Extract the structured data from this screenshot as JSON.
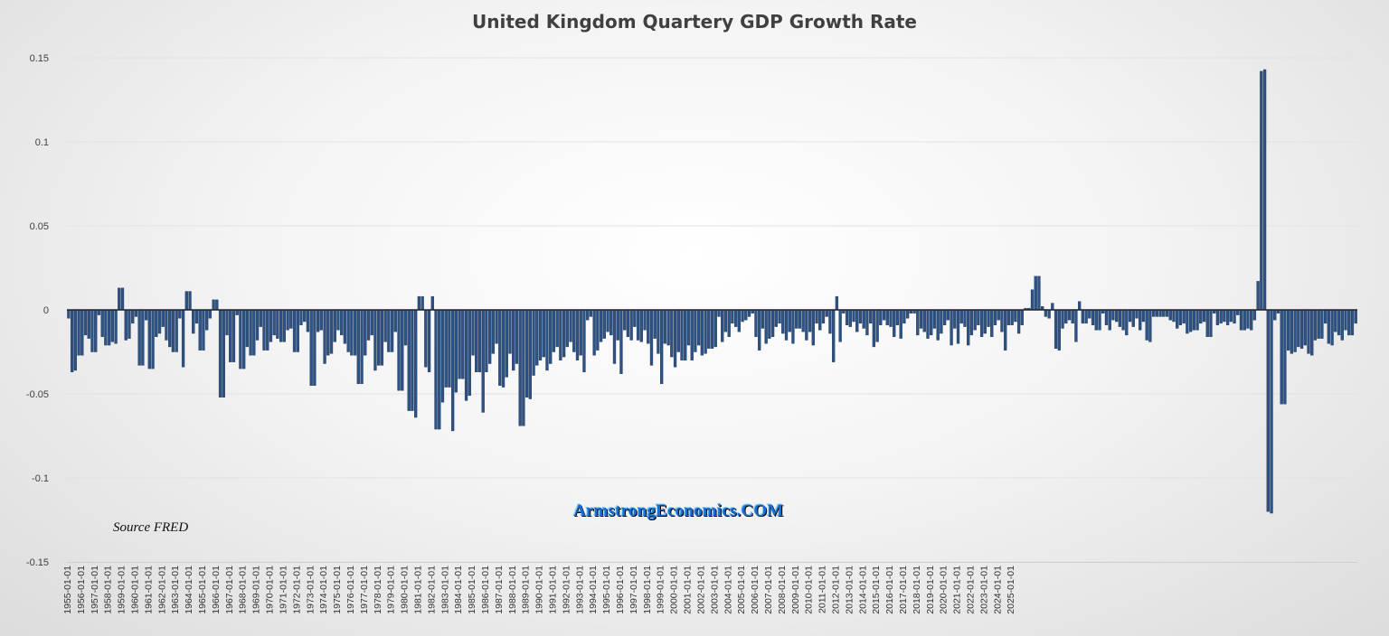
{
  "chart_data": {
    "type": "bar",
    "title": "United Kingdom Quartery GDP Growth Rate",
    "xlabel": "",
    "ylabel": "",
    "ylim": [
      -0.15,
      0.15
    ],
    "yticks": [
      "0.15",
      "0.1",
      "0.05",
      "0",
      "-0.05",
      "-0.1",
      "-0.15"
    ],
    "ytick_values": [
      0.15,
      0.1,
      0.05,
      0,
      -0.05,
      -0.1,
      -0.15
    ],
    "grid": true,
    "bar_color": "#2e5283",
    "x_start": "1955-01-01",
    "frequency": "quarterly",
    "xtick_labels": [
      "1955-01-01",
      "1956-01-01",
      "1957-01-01",
      "1958-01-01",
      "1959-01-01",
      "1960-01-01",
      "1961-01-01",
      "1962-01-01",
      "1963-01-01",
      "1964-01-01",
      "1965-01-01",
      "1966-01-01",
      "1967-01-01",
      "1968-01-01",
      "1969-01-01",
      "1970-01-01",
      "1971-01-01",
      "1972-01-01",
      "1973-01-01",
      "1974-01-01",
      "1975-01-01",
      "1976-01-01",
      "1977-01-01",
      "1978-01-01",
      "1979-01-01",
      "1980-01-01",
      "1981-01-01",
      "1982-01-01",
      "1983-01-01",
      "1984-01-01",
      "1985-01-01",
      "1986-01-01",
      "1987-01-01",
      "1988-01-01",
      "1989-01-01",
      "1990-01-01",
      "1991-01-01",
      "1992-01-01",
      "1993-01-01",
      "1994-01-01",
      "1995-01-01",
      "1996-01-01",
      "1997-01-01",
      "1998-01-01",
      "1999-01-01",
      "2000-01-01",
      "2001-01-01",
      "2002-01-01",
      "2003-01-01",
      "2004-01-01",
      "2005-01-01",
      "2006-01-01",
      "2007-01-01",
      "2008-01-01",
      "2009-01-01",
      "2010-01-01",
      "2011-01-01",
      "2012-01-01",
      "2013-01-01",
      "2014-01-01",
      "2015-01-01",
      "2016-01-01",
      "2017-01-01",
      "2018-01-01",
      "2019-01-01",
      "2020-01-01",
      "2021-01-01",
      "2022-01-01",
      "2023-01-01",
      "2024-01-01",
      "2025-01-01"
    ],
    "values": [
      -0.005,
      -0.037,
      -0.036,
      -0.027,
      -0.027,
      -0.015,
      -0.017,
      -0.025,
      -0.025,
      -0.003,
      -0.016,
      -0.021,
      -0.021,
      -0.019,
      -0.02,
      0.013,
      0.013,
      -0.018,
      -0.017,
      -0.008,
      -0.004,
      -0.033,
      -0.033,
      -0.006,
      -0.035,
      -0.035,
      -0.016,
      -0.014,
      -0.01,
      -0.018,
      -0.022,
      -0.025,
      -0.025,
      -0.005,
      -0.034,
      0.011,
      0.011,
      -0.014,
      -0.008,
      -0.024,
      -0.024,
      -0.012,
      -0.005,
      0.006,
      0.006,
      -0.052,
      -0.052,
      -0.015,
      -0.031,
      -0.031,
      -0.003,
      -0.035,
      -0.035,
      -0.022,
      -0.027,
      -0.027,
      -0.018,
      -0.01,
      -0.024,
      -0.024,
      -0.019,
      -0.015,
      -0.017,
      -0.019,
      -0.019,
      -0.012,
      -0.011,
      -0.025,
      -0.025,
      -0.009,
      -0.007,
      -0.013,
      -0.045,
      -0.045,
      -0.013,
      -0.012,
      -0.032,
      -0.027,
      -0.026,
      -0.019,
      -0.012,
      -0.015,
      -0.02,
      -0.025,
      -0.027,
      -0.027,
      -0.044,
      -0.044,
      -0.027,
      -0.018,
      -0.015,
      -0.036,
      -0.033,
      -0.033,
      -0.019,
      -0.025,
      -0.025,
      -0.013,
      -0.048,
      -0.048,
      -0.021,
      -0.06,
      -0.06,
      -0.064,
      0.008,
      0.008,
      -0.034,
      -0.037,
      0.008,
      -0.071,
      -0.071,
      -0.055,
      -0.046,
      -0.046,
      -0.072,
      -0.049,
      -0.041,
      -0.041,
      -0.054,
      -0.051,
      -0.027,
      -0.037,
      -0.037,
      -0.061,
      -0.037,
      -0.032,
      -0.026,
      -0.02,
      -0.045,
      -0.046,
      -0.04,
      -0.026,
      -0.036,
      -0.032,
      -0.069,
      -0.069,
      -0.052,
      -0.053,
      -0.039,
      -0.033,
      -0.03,
      -0.028,
      -0.036,
      -0.032,
      -0.025,
      -0.022,
      -0.03,
      -0.028,
      -0.022,
      -0.019,
      -0.025,
      -0.03,
      -0.027,
      -0.037,
      -0.006,
      -0.004,
      -0.027,
      -0.024,
      -0.019,
      -0.017,
      -0.013,
      -0.015,
      -0.032,
      -0.018,
      -0.038,
      -0.012,
      -0.016,
      -0.018,
      -0.01,
      -0.018,
      -0.019,
      -0.012,
      -0.02,
      -0.033,
      -0.017,
      -0.026,
      -0.044,
      -0.02,
      -0.021,
      -0.028,
      -0.034,
      -0.025,
      -0.03,
      -0.03,
      -0.021,
      -0.03,
      -0.025,
      -0.021,
      -0.027,
      -0.026,
      -0.023,
      -0.023,
      -0.022,
      -0.004,
      -0.019,
      -0.013,
      -0.016,
      -0.008,
      -0.01,
      -0.013,
      -0.007,
      -0.006,
      -0.004,
      -0.002,
      -0.016,
      -0.024,
      -0.011,
      -0.02,
      -0.017,
      -0.016,
      -0.01,
      -0.008,
      -0.014,
      -0.018,
      -0.013,
      -0.02,
      -0.011,
      -0.011,
      -0.013,
      -0.018,
      -0.013,
      -0.021,
      -0.008,
      -0.012,
      -0.008,
      -0.004,
      -0.014,
      -0.031,
      0.008,
      -0.019,
      -0.002,
      -0.009,
      -0.01,
      -0.007,
      -0.013,
      -0.008,
      -0.011,
      -0.015,
      -0.008,
      -0.022,
      -0.019,
      -0.009,
      -0.006,
      -0.009,
      -0.01,
      -0.016,
      -0.009,
      -0.017,
      -0.008,
      -0.005,
      -0.002,
      -0.002,
      -0.015,
      -0.011,
      -0.013,
      -0.017,
      -0.015,
      -0.011,
      -0.018,
      -0.014,
      -0.009,
      -0.006,
      -0.021,
      -0.011,
      -0.02,
      -0.008,
      -0.01,
      -0.021,
      -0.015,
      -0.012,
      -0.009,
      -0.016,
      -0.014,
      -0.01,
      -0.016,
      -0.009,
      -0.006,
      -0.013,
      -0.024,
      -0.009,
      -0.009,
      -0.007,
      -0.014,
      -0.009,
      0.001,
      0.001,
      0.012,
      0.02,
      0.02,
      0.002,
      -0.004,
      -0.005,
      0.004,
      -0.023,
      -0.024,
      -0.011,
      -0.008,
      -0.006,
      -0.008,
      -0.019,
      0.005,
      -0.008,
      -0.008,
      -0.005,
      -0.009,
      -0.012,
      -0.012,
      -0.002,
      -0.009,
      -0.012,
      -0.006,
      -0.007,
      -0.01,
      -0.012,
      -0.015,
      -0.007,
      -0.01,
      -0.005,
      -0.012,
      -0.007,
      -0.018,
      -0.019,
      -0.004,
      -0.004,
      -0.004,
      -0.004,
      -0.004,
      -0.006,
      -0.007,
      -0.011,
      -0.009,
      -0.008,
      -0.014,
      -0.013,
      -0.012,
      -0.012,
      -0.008,
      -0.007,
      -0.016,
      -0.016,
      -0.002,
      -0.009,
      -0.008,
      -0.007,
      -0.009,
      -0.007,
      -0.008,
      -0.003,
      -0.012,
      -0.012,
      -0.011,
      -0.012,
      -0.006,
      0.017,
      0.142,
      0.143,
      -0.12,
      -0.121,
      -0.006,
      -0.002,
      -0.056,
      -0.056,
      -0.024,
      -0.026,
      -0.025,
      -0.022,
      -0.023,
      -0.021,
      -0.026,
      -0.027,
      -0.018,
      -0.017,
      -0.017,
      -0.008,
      -0.02,
      -0.021,
      -0.013,
      -0.015,
      -0.018,
      -0.012,
      -0.015,
      -0.015,
      -0.008
    ]
  },
  "source_label": "Source FRED",
  "watermark": "ArmstrongEconomics.COM"
}
